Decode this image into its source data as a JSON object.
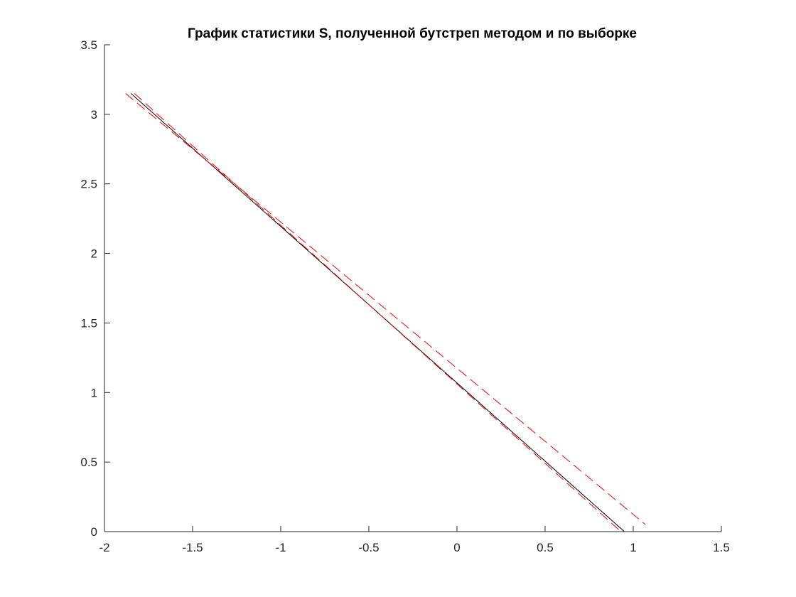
{
  "chart_data": {
    "type": "line",
    "title": "График статистики S, полученной бутстреп методом и по выборке",
    "xlabel": "",
    "ylabel": "",
    "xlim": [
      -2,
      1.5
    ],
    "ylim": [
      0,
      3.5
    ],
    "x_ticks": [
      "-2",
      "-1.5",
      "-1",
      "-0.5",
      "0",
      "0.5",
      "1",
      "1.5"
    ],
    "y_ticks": [
      "0",
      "0.5",
      "1",
      "1.5",
      "2",
      "2.5",
      "3",
      "3.5"
    ],
    "grid": false,
    "legend": "none",
    "box": "left-bottom axes only",
    "series": [
      {
        "style": "solid",
        "color": "#000000",
        "x": [
          -1.85,
          0.95
        ],
        "y": [
          3.15,
          0.0
        ]
      },
      {
        "style": "dashed",
        "color": "#ff0000",
        "x": [
          -1.83,
          0.93
        ],
        "y": [
          3.15,
          0.0
        ]
      },
      {
        "style": "dashed",
        "color": "#ff0000",
        "x": [
          -1.88,
          1.07
        ],
        "y": [
          3.15,
          0.05
        ]
      },
      {
        "style": "dashed",
        "color": "#ff0000",
        "x": [
          -0.25,
          1.08
        ],
        "y": [
          0.0,
          0.0
        ]
      }
    ]
  }
}
